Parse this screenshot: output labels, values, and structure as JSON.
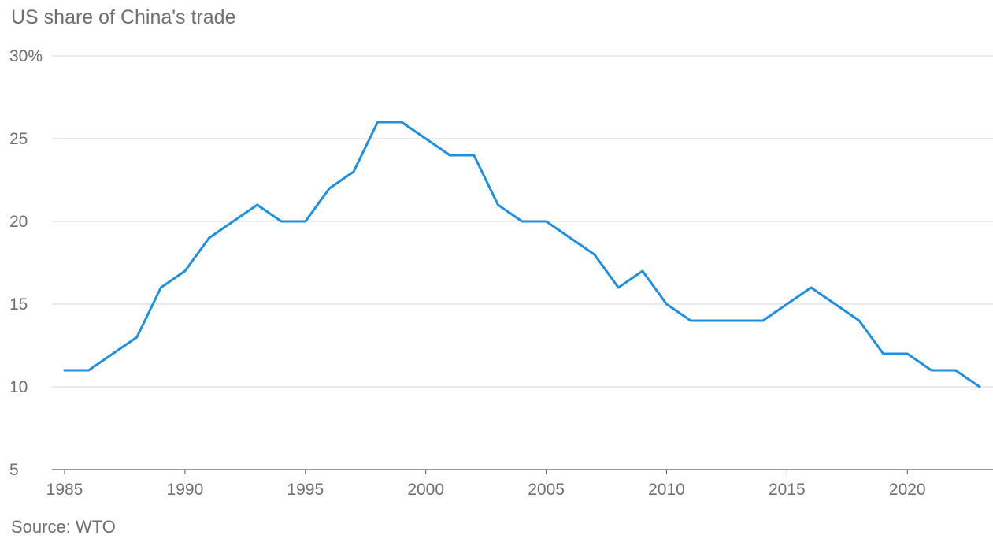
{
  "source": "Source: WTO",
  "colors": {
    "series": "#1f8fe0"
  },
  "chart_data": {
    "type": "line",
    "title": "US share of China's trade",
    "xlabel": "",
    "ylabel": "",
    "x": [
      1985,
      1986,
      1987,
      1988,
      1989,
      1990,
      1991,
      1992,
      1993,
      1994,
      1995,
      1996,
      1997,
      1998,
      1999,
      2000,
      2001,
      2002,
      2003,
      2004,
      2005,
      2006,
      2007,
      2008,
      2009,
      2010,
      2011,
      2012,
      2013,
      2014,
      2015,
      2016,
      2017,
      2018,
      2019,
      2020,
      2021,
      2022,
      2023
    ],
    "series": [
      {
        "values": [
          11,
          11,
          12,
          13,
          16,
          17,
          19,
          20,
          21,
          20,
          20,
          22,
          23,
          26,
          26,
          25,
          24,
          24,
          21,
          20,
          20,
          19,
          18,
          16,
          17,
          15,
          14,
          14,
          14,
          14,
          15,
          16,
          15,
          14,
          12,
          12,
          11,
          11,
          10
        ]
      }
    ],
    "xlim": [
      1985,
      2023
    ],
    "ylim": [
      5,
      30
    ],
    "y_ticks": [
      {
        "value": 5,
        "label": "5"
      },
      {
        "value": 10,
        "label": "10"
      },
      {
        "value": 15,
        "label": "15"
      },
      {
        "value": 20,
        "label": "20"
      },
      {
        "value": 25,
        "label": "25"
      },
      {
        "value": 30,
        "label": "30%"
      }
    ],
    "x_ticks": [
      {
        "value": 1985,
        "label": "1985"
      },
      {
        "value": 1990,
        "label": "1990"
      },
      {
        "value": 1995,
        "label": "1995"
      },
      {
        "value": 2000,
        "label": "2000"
      },
      {
        "value": 2005,
        "label": "2005"
      },
      {
        "value": 2010,
        "label": "2010"
      },
      {
        "value": 2015,
        "label": "2015"
      },
      {
        "value": 2020,
        "label": "2020"
      }
    ],
    "grid": true,
    "legend": "none"
  }
}
